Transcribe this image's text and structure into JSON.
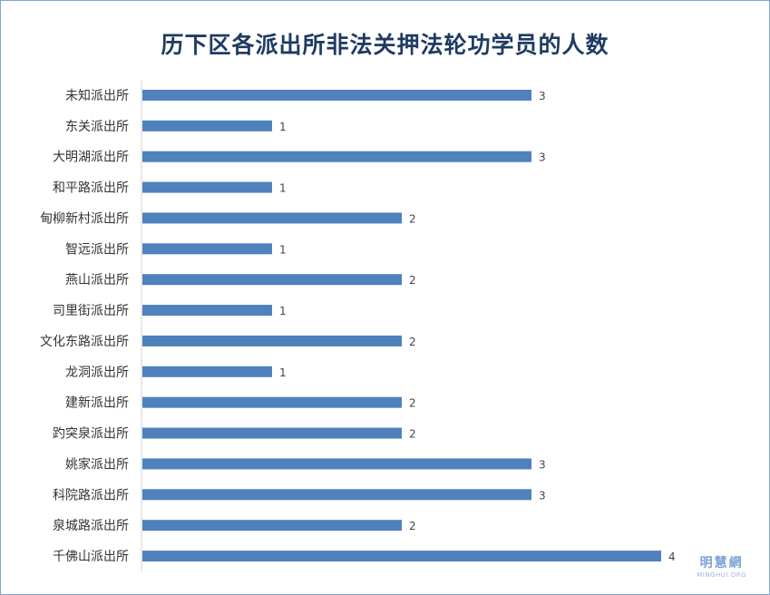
{
  "chart_data": {
    "type": "bar",
    "orientation": "horizontal",
    "title": "历下区各派出所非法关押法轮功学员的人数",
    "categories": [
      "未知派出所",
      "东关派出所",
      "大明湖派出所",
      "和平路派出所",
      "甸柳新村派出所",
      "智远派出所",
      "燕山派出所",
      "司里街派出所",
      "文化东路派出所",
      "龙洞派出所",
      "建新派出所",
      "趵突泉派出所",
      "姚家派出所",
      "科院路派出所",
      "泉城路派出所",
      "千佛山派出所"
    ],
    "values": [
      3,
      1,
      3,
      1,
      2,
      1,
      2,
      1,
      2,
      1,
      2,
      2,
      3,
      3,
      2,
      4
    ],
    "xlim": [
      0,
      4
    ],
    "grid": false,
    "bar_color": "#4f81bd",
    "data_labels": true
  },
  "watermark": {
    "cn": "明慧網",
    "en": "MINGHUI.ORG"
  }
}
